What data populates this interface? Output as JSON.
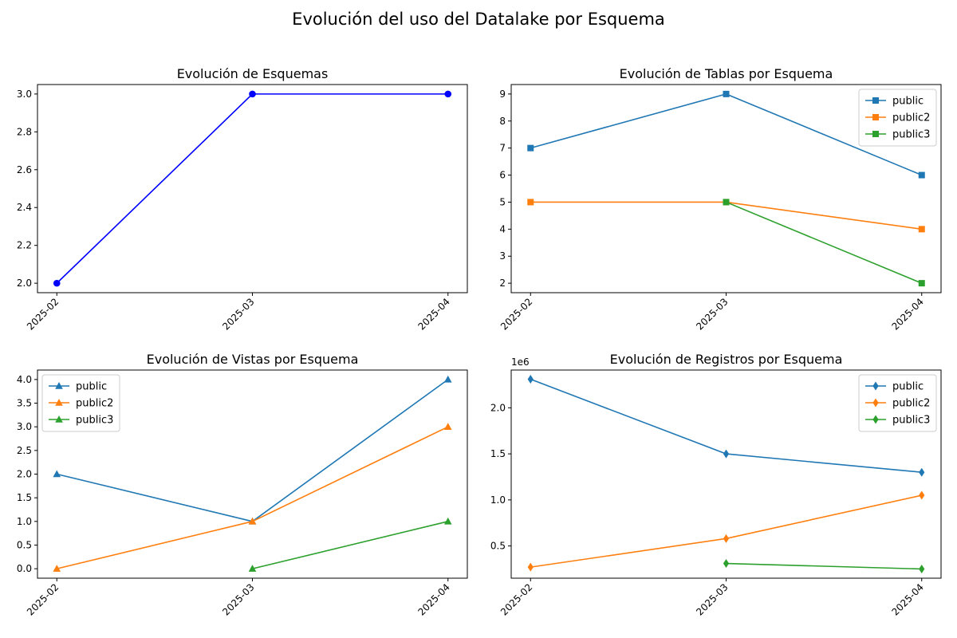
{
  "figure": {
    "title": "Evolución del uso del Datalake por Esquema"
  },
  "chart_data": [
    {
      "type": "line",
      "title": "Evolución de Esquemas",
      "categories": [
        "2025-02",
        "2025-03",
        "2025-04"
      ],
      "ylim": [
        1.95,
        3.05
      ],
      "yticks": [
        2.0,
        2.2,
        2.4,
        2.6,
        2.8,
        3.0
      ],
      "ytick_labels": [
        "2.0",
        "2.2",
        "2.4",
        "2.6",
        "2.8",
        "3.0"
      ],
      "legend": "none",
      "grid": false,
      "series": [
        {
          "values": [
            2,
            3,
            3
          ],
          "color": "#0000ff",
          "marker": "circle"
        }
      ]
    },
    {
      "type": "line",
      "title": "Evolución de Tablas por Esquema",
      "categories": [
        "2025-02",
        "2025-03",
        "2025-04"
      ],
      "ylim": [
        1.65,
        9.35
      ],
      "yticks": [
        2,
        3,
        4,
        5,
        6,
        7,
        8,
        9
      ],
      "ytick_labels": [
        "2",
        "3",
        "4",
        "5",
        "6",
        "7",
        "8",
        "9"
      ],
      "legend": "top-right",
      "grid": false,
      "series": [
        {
          "name": "public",
          "values": [
            7,
            9,
            6
          ],
          "color": "#1f77b4",
          "marker": "square"
        },
        {
          "name": "public2",
          "values": [
            5,
            5,
            4
          ],
          "color": "#ff7f0e",
          "marker": "square"
        },
        {
          "name": "public3",
          "values": [
            null,
            5,
            2
          ],
          "color": "#2ca02c",
          "marker": "square"
        }
      ]
    },
    {
      "type": "line",
      "title": "Evolución de Vistas por Esquema",
      "categories": [
        "2025-02",
        "2025-03",
        "2025-04"
      ],
      "ylim": [
        -0.2,
        4.2
      ],
      "yticks": [
        0,
        0.5,
        1,
        1.5,
        2,
        2.5,
        3,
        3.5,
        4
      ],
      "ytick_labels": [
        "0.0",
        "0.5",
        "1.0",
        "1.5",
        "2.0",
        "2.5",
        "3.0",
        "3.5",
        "4.0"
      ],
      "legend": "top-left",
      "grid": false,
      "series": [
        {
          "name": "public",
          "values": [
            2,
            1,
            4
          ],
          "color": "#1f77b4",
          "marker": "triangle"
        },
        {
          "name": "public2",
          "values": [
            0,
            1,
            3
          ],
          "color": "#ff7f0e",
          "marker": "triangle"
        },
        {
          "name": "public3",
          "values": [
            null,
            0,
            1
          ],
          "color": "#2ca02c",
          "marker": "triangle"
        }
      ]
    },
    {
      "type": "line",
      "title": "Evolución de Registros por Esquema",
      "categories": [
        "2025-02",
        "2025-03",
        "2025-04"
      ],
      "ylim": [
        150000,
        2410000
      ],
      "yticks": [
        500000,
        1000000,
        1500000,
        2000000
      ],
      "ytick_labels": [
        "0.5",
        "1.0",
        "1.5",
        "2.0"
      ],
      "offset_label": "1e6",
      "legend": "top-right",
      "grid": false,
      "series": [
        {
          "name": "public",
          "values": [
            2310000,
            1500000,
            1300000
          ],
          "color": "#1f77b4",
          "marker": "diamond"
        },
        {
          "name": "public2",
          "values": [
            270000,
            580000,
            1050000
          ],
          "color": "#ff7f0e",
          "marker": "diamond"
        },
        {
          "name": "public3",
          "values": [
            null,
            310000,
            250000
          ],
          "color": "#2ca02c",
          "marker": "diamond"
        }
      ]
    }
  ]
}
